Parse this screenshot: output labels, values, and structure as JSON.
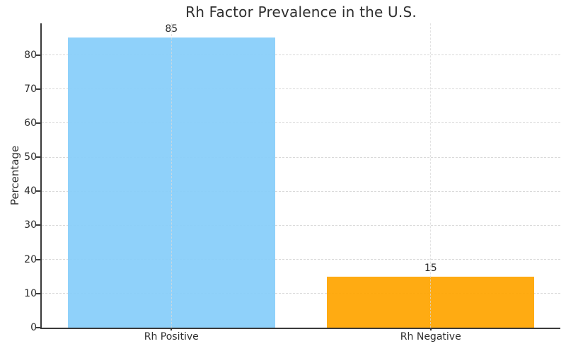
{
  "chart_data": {
    "type": "bar",
    "title": "Rh Factor Prevalence in the U.S.",
    "ylabel": "Percentage",
    "xlabel": "",
    "categories": [
      "Rh Positive",
      "Rh Negative"
    ],
    "values": [
      85,
      15
    ],
    "bar_value_labels": [
      "85",
      "15"
    ],
    "bar_colors": [
      "#87CEFA",
      "#FFA500"
    ],
    "yticks": [
      0,
      10,
      20,
      30,
      40,
      50,
      60,
      70,
      80
    ],
    "ylim": [
      0,
      89.25
    ],
    "bar_width_frac": 0.8,
    "grid": "both-dashed",
    "legend": "none",
    "spines": [
      "left",
      "bottom"
    ],
    "colors": {
      "grid": "#d9d9d9",
      "spine": "#3a3a3a",
      "text": "#2e2e2e"
    }
  }
}
